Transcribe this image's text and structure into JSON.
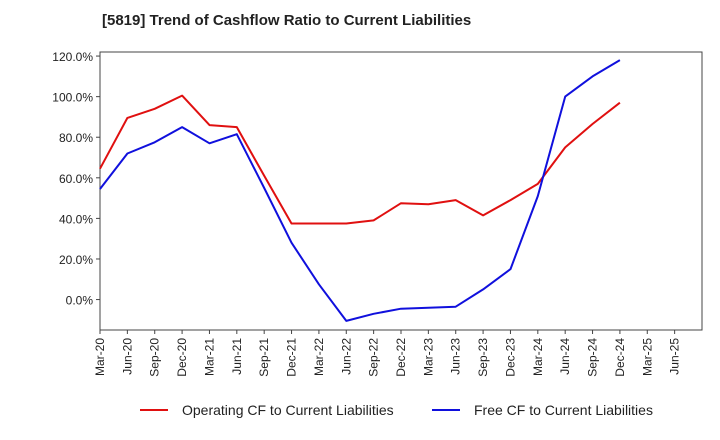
{
  "title": "[5819]  Trend of Cashflow Ratio to Current Liabilities",
  "chart_data": {
    "type": "line",
    "categories": [
      "Mar-20",
      "Jun-20",
      "Sep-20",
      "Dec-20",
      "Mar-21",
      "Jun-21",
      "Sep-21",
      "Dec-21",
      "Mar-22",
      "Jun-22",
      "Sep-22",
      "Dec-22",
      "Mar-23",
      "Jun-23",
      "Sep-23",
      "Dec-23",
      "Mar-24",
      "Jun-24",
      "Sep-24",
      "Dec-24",
      "Mar-25",
      "Jun-25"
    ],
    "y_ticks": [
      "-0.0%",
      "0.0%",
      "20.0%",
      "40.0%",
      "60.0%",
      "80.0%",
      "100.0%",
      "120.0%"
    ],
    "y_tick_values": [
      0,
      20,
      40,
      60,
      80,
      100,
      120
    ],
    "y_tick_labels": [
      "0.0%",
      "20.0%",
      "40.0%",
      "60.0%",
      "80.0%",
      "100.0%",
      "120.0%"
    ],
    "ylim": [
      -15,
      122
    ],
    "grid": true,
    "legend_position": "bottom",
    "series": [
      {
        "name": "Operating CF to Current Liabilities",
        "color": "#e01010",
        "values": [
          64.5,
          89.5,
          94.0,
          100.5,
          86.0,
          85.0,
          61.0,
          37.5,
          37.5,
          37.5,
          39.0,
          47.5,
          47.0,
          49.0,
          41.5,
          49.0,
          57.0,
          75.0,
          86.5,
          97.0,
          null,
          null
        ]
      },
      {
        "name": "Free CF to Current Liabilities",
        "color": "#1010dd",
        "values": [
          54.5,
          72.0,
          77.5,
          85.0,
          77.0,
          81.5,
          55.0,
          28.0,
          7.5,
          -10.5,
          -7.0,
          -4.5,
          -4.0,
          -3.5,
          5.0,
          15.0,
          51.0,
          100.0,
          110.0,
          118.0,
          null,
          null
        ]
      }
    ]
  }
}
